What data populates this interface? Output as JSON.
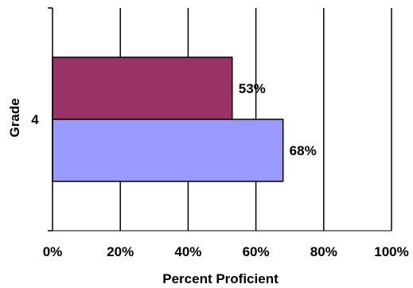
{
  "chart_data": {
    "type": "bar",
    "orientation": "horizontal",
    "title": "",
    "xlabel": "Percent Proficient",
    "ylabel": "Grade",
    "categories": [
      "4"
    ],
    "series": [
      {
        "values": [
          53
        ],
        "labels": [
          "53%"
        ],
        "color": "#993366"
      },
      {
        "values": [
          68
        ],
        "labels": [
          "68%"
        ],
        "color": "#9999FF"
      }
    ],
    "xlim": [
      0,
      100
    ],
    "x_ticks": [
      0,
      20,
      40,
      60,
      80,
      100
    ],
    "x_tick_labels": [
      "0%",
      "20%",
      "40%",
      "60%",
      "80%",
      "100%"
    ],
    "grid": "vertical",
    "legend": "none"
  }
}
